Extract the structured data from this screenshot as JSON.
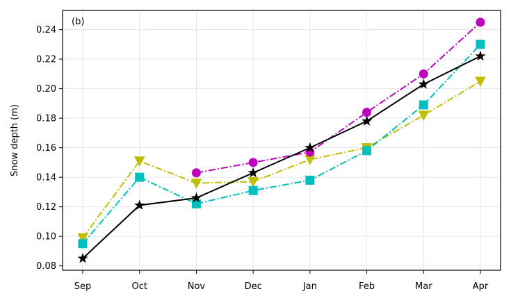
{
  "chart_data": {
    "type": "line",
    "panel_label": "(b)",
    "ylabel": "Snow depth (m)",
    "xlabel": "",
    "categories": [
      "Sep",
      "Oct",
      "Nov",
      "Dec",
      "Jan",
      "Feb",
      "Mar",
      "Apr"
    ],
    "ylim": [
      0.077,
      0.253
    ],
    "yticks": [
      0.08,
      0.1,
      0.12,
      0.14,
      0.16,
      0.18,
      0.2,
      0.22,
      0.24
    ],
    "ytick_labels": [
      "0.08",
      "0.10",
      "0.12",
      "0.14",
      "0.16",
      "0.18",
      "0.20",
      "0.22",
      "0.24"
    ],
    "grid": true,
    "series": [
      {
        "color": "#bfbf00",
        "marker": "triangle-down",
        "linestyle": "dashdot",
        "values": [
          0.099,
          0.151,
          0.136,
          0.137,
          0.152,
          0.16,
          0.182,
          0.205
        ]
      },
      {
        "color": "#00bfbf",
        "marker": "square",
        "linestyle": "dashdot",
        "values": [
          0.095,
          0.14,
          0.122,
          0.131,
          0.138,
          0.158,
          0.189,
          0.23
        ]
      },
      {
        "color": "#bf00bf",
        "marker": "circle",
        "linestyle": "dashdot",
        "values": [
          null,
          null,
          0.143,
          0.15,
          0.157,
          0.184,
          0.21,
          0.245
        ]
      },
      {
        "color": "#000000",
        "marker": "star",
        "linestyle": "solid",
        "values": [
          0.085,
          0.121,
          0.126,
          0.143,
          0.16,
          0.178,
          0.203,
          0.222
        ]
      }
    ]
  }
}
